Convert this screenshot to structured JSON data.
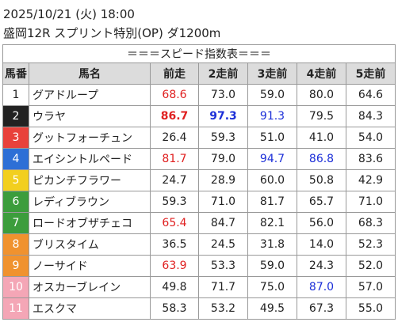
{
  "header": {
    "datetime": "2025/10/21 (火) 18:00",
    "race": "盛岡12R スプリント特別(OP) ダ1200m"
  },
  "table": {
    "title": "＝＝＝スピード指数表＝＝＝",
    "columns": [
      "馬番",
      "馬名",
      "前走",
      "2走前",
      "3走前",
      "4走前",
      "5走前"
    ],
    "rows": [
      {
        "number": "1",
        "frame": "white",
        "name": "グアドループ",
        "values": [
          "68.6",
          "73.0",
          "59.0",
          "80.0",
          "64.6"
        ],
        "styles": [
          "red",
          "plain",
          "plain",
          "plain",
          "plain"
        ]
      },
      {
        "number": "2",
        "frame": "black",
        "name": "ウラヤ",
        "values": [
          "86.7",
          "97.3",
          "91.3",
          "79.5",
          "84.3"
        ],
        "styles": [
          "red-bold",
          "blue-bold",
          "blue",
          "plain",
          "plain"
        ]
      },
      {
        "number": "3",
        "frame": "red",
        "name": "グットフォーチュン",
        "values": [
          "26.4",
          "59.3",
          "51.0",
          "41.0",
          "54.0"
        ],
        "styles": [
          "plain",
          "plain",
          "plain",
          "plain",
          "plain"
        ]
      },
      {
        "number": "4",
        "frame": "blue",
        "name": "エイシントルペード",
        "values": [
          "81.7",
          "79.0",
          "94.7",
          "86.8",
          "83.6"
        ],
        "styles": [
          "red",
          "plain",
          "blue",
          "blue",
          "plain"
        ]
      },
      {
        "number": "5",
        "frame": "yellow",
        "name": "ピカンチフラワー",
        "values": [
          "24.7",
          "28.9",
          "60.0",
          "50.8",
          "42.9"
        ],
        "styles": [
          "plain",
          "plain",
          "plain",
          "plain",
          "plain"
        ]
      },
      {
        "number": "6",
        "frame": "green",
        "name": "レディブラウン",
        "values": [
          "59.3",
          "71.0",
          "81.7",
          "65.7",
          "71.0"
        ],
        "styles": [
          "plain",
          "plain",
          "plain",
          "plain",
          "plain"
        ]
      },
      {
        "number": "7",
        "frame": "green",
        "name": "ロードオブザチェコ",
        "values": [
          "65.4",
          "84.7",
          "82.1",
          "56.0",
          "68.3"
        ],
        "styles": [
          "red",
          "plain",
          "plain",
          "plain",
          "plain"
        ]
      },
      {
        "number": "8",
        "frame": "orange",
        "name": "ブリスタイム",
        "values": [
          "36.5",
          "24.5",
          "31.8",
          "14.0",
          "52.3"
        ],
        "styles": [
          "plain",
          "plain",
          "plain",
          "plain",
          "plain"
        ]
      },
      {
        "number": "9",
        "frame": "orange",
        "name": "ノーサイド",
        "values": [
          "63.9",
          "53.3",
          "59.0",
          "24.3",
          "52.0"
        ],
        "styles": [
          "red",
          "plain",
          "plain",
          "plain",
          "plain"
        ]
      },
      {
        "number": "10",
        "frame": "pink",
        "name": "オスカーブレイン",
        "values": [
          "49.8",
          "71.7",
          "75.0",
          "87.0",
          "57.0"
        ],
        "styles": [
          "plain",
          "plain",
          "plain",
          "blue",
          "plain"
        ]
      },
      {
        "number": "11",
        "frame": "pink",
        "name": "エスクマ",
        "values": [
          "58.3",
          "53.2",
          "49.5",
          "67.3",
          "55.0"
        ],
        "styles": [
          "plain",
          "plain",
          "plain",
          "plain",
          "plain"
        ]
      }
    ]
  }
}
